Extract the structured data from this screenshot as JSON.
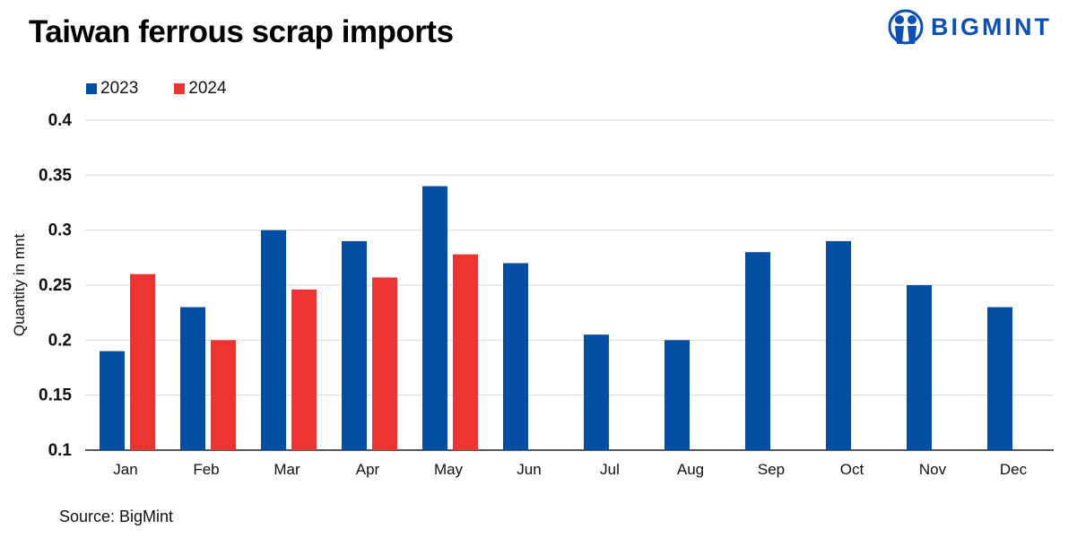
{
  "logo_text": "BIGMINT",
  "source": "Source: BigMint",
  "colors": {
    "2023": "#034ea2",
    "2024": "#ee3433"
  },
  "chart_data": {
    "type": "bar",
    "title": "Taiwan ferrous scrap imports",
    "xlabel": "",
    "ylabel": "Quantity in mnt",
    "ylim": [
      0.1,
      0.4
    ],
    "yticks": [
      "0.1",
      "0.15",
      "0.2",
      "0.25",
      "0.3",
      "0.35",
      "0.4"
    ],
    "grid": true,
    "legend_position": "top-left",
    "categories": [
      "Jan",
      "Feb",
      "Mar",
      "Apr",
      "May",
      "Jun",
      "Jul",
      "Aug",
      "Sep",
      "Oct",
      "Nov",
      "Dec"
    ],
    "series": [
      {
        "name": "2023",
        "values": [
          0.19,
          0.23,
          0.3,
          0.29,
          0.34,
          0.27,
          0.205,
          0.2,
          0.28,
          0.29,
          0.25,
          0.23
        ]
      },
      {
        "name": "2024",
        "values": [
          0.26,
          0.2,
          0.246,
          0.257,
          0.278,
          null,
          null,
          null,
          null,
          null,
          null,
          null
        ]
      }
    ]
  }
}
